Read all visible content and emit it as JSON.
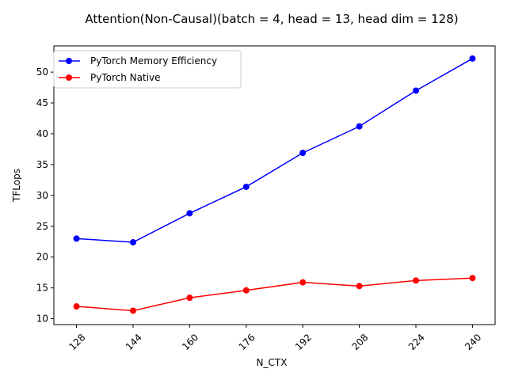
{
  "chart_data": {
    "type": "line",
    "title": "Attention(Non-Causal)(batch = 4, head = 13, head dim = 128)",
    "xlabel": "N_CTX",
    "ylabel": "TFLops",
    "x": [
      128,
      144,
      160,
      176,
      192,
      208,
      224,
      240
    ],
    "xlim": [
      121.6,
      246.4
    ],
    "ylim": [
      9.05,
      54.25
    ],
    "yticks": [
      10,
      15,
      20,
      25,
      30,
      35,
      40,
      45,
      50
    ],
    "xtick_rotation": 45,
    "grid": false,
    "legend_position": "top-left",
    "series": [
      {
        "name": "PyTorch Memory Efficiency",
        "color": "#0000ff",
        "values": [
          23.0,
          22.4,
          27.1,
          31.4,
          36.9,
          41.2,
          47.0,
          52.2
        ]
      },
      {
        "name": "PyTorch Native",
        "color": "#ff0000",
        "values": [
          12.0,
          11.3,
          13.4,
          14.6,
          15.9,
          15.3,
          16.2,
          16.6
        ]
      }
    ]
  }
}
